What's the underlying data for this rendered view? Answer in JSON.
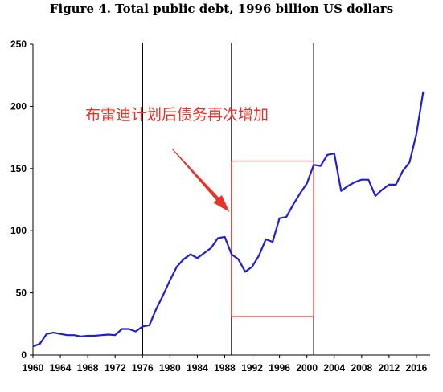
{
  "chart_data": {
    "type": "line",
    "title": "Figure 4. Total public debt, 1996 billion US dollars",
    "xlabel": "",
    "ylabel": "",
    "xlim": [
      1960,
      2018
    ],
    "ylim": [
      0,
      250
    ],
    "grid": false,
    "x_ticks": [
      "1960",
      "1964",
      "1968",
      "1972",
      "1976",
      "1980",
      "1984",
      "1988",
      "1992",
      "1996",
      "2000",
      "2004",
      "2008",
      "2012",
      "2016"
    ],
    "y_ticks": [
      "0",
      "50",
      "100",
      "150",
      "200",
      "250"
    ],
    "series": [
      {
        "color": "#1f1fd0",
        "x": [
          1960,
          1961,
          1962,
          1963,
          1964,
          1965,
          1966,
          1967,
          1968,
          1969,
          1970,
          1971,
          1972,
          1973,
          1974,
          1975,
          1976,
          1977,
          1978,
          1979,
          1980,
          1981,
          1982,
          1983,
          1984,
          1985,
          1986,
          1987,
          1988,
          1989,
          1990,
          1991,
          1992,
          1993,
          1994,
          1995,
          1996,
          1997,
          1998,
          1999,
          2000,
          2001,
          2002,
          2003,
          2004,
          2005,
          2006,
          2007,
          2008,
          2009,
          2010,
          2011,
          2012,
          2013,
          2014,
          2015,
          2016,
          2017,
          2018
        ],
        "y": [
          7,
          9,
          17,
          18,
          17,
          16,
          16,
          15,
          15.5,
          15.5,
          16,
          16.5,
          16,
          21,
          21,
          19,
          23,
          24,
          37,
          48,
          60,
          71,
          77,
          81,
          78,
          82,
          86,
          94,
          95,
          81,
          77,
          67,
          71,
          80,
          93,
          91,
          110,
          111,
          121,
          130,
          138,
          153,
          152,
          161,
          162,
          132,
          136,
          139,
          141,
          141,
          128,
          133,
          137,
          137,
          148,
          155,
          178,
          212,
          null
        ]
      }
    ],
    "vertical_lines_x": [
      1976,
      1989,
      2001
    ],
    "highlight_box": {
      "x": [
        1989,
        2001
      ],
      "y": [
        31,
        156
      ],
      "color": "#e8322a"
    },
    "annotations": [
      {
        "text": "布雷迪计划后债务再次增加",
        "color": "#e8322a",
        "arrow_from": [
          1980.3,
          166
        ],
        "arrow_to": [
          1988.7,
          115
        ]
      }
    ]
  }
}
